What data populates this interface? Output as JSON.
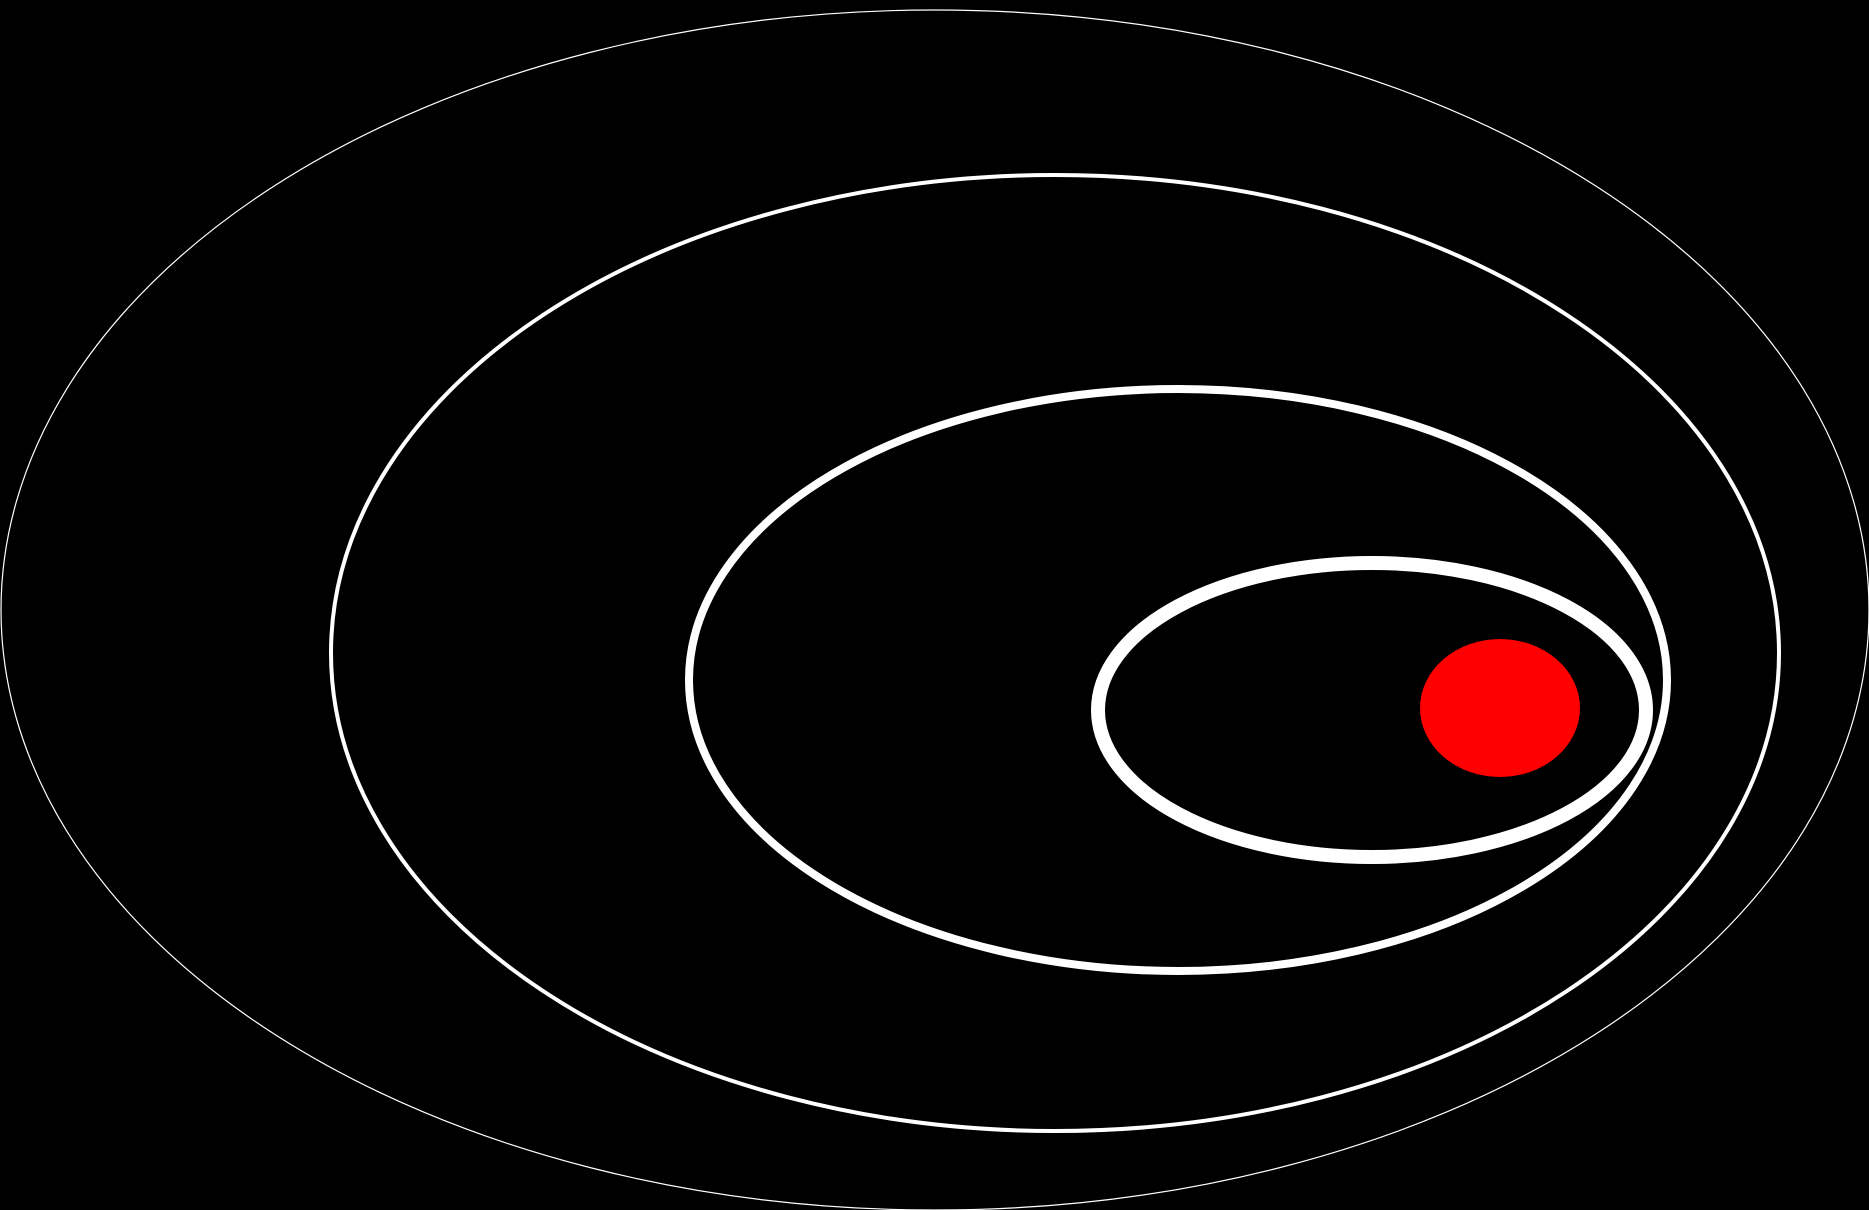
{
  "colors": {
    "background": "#000000",
    "ring": "#ffffff",
    "dot": "#ff0000"
  },
  "rings": [
    {
      "name": "ring-outermost",
      "stroke_weight": "hairline"
    },
    {
      "name": "ring-second",
      "stroke_weight": "thin"
    },
    {
      "name": "ring-third",
      "stroke_weight": "medium"
    },
    {
      "name": "ring-innermost",
      "stroke_weight": "thick"
    }
  ],
  "dot": {
    "name": "red-dot"
  }
}
